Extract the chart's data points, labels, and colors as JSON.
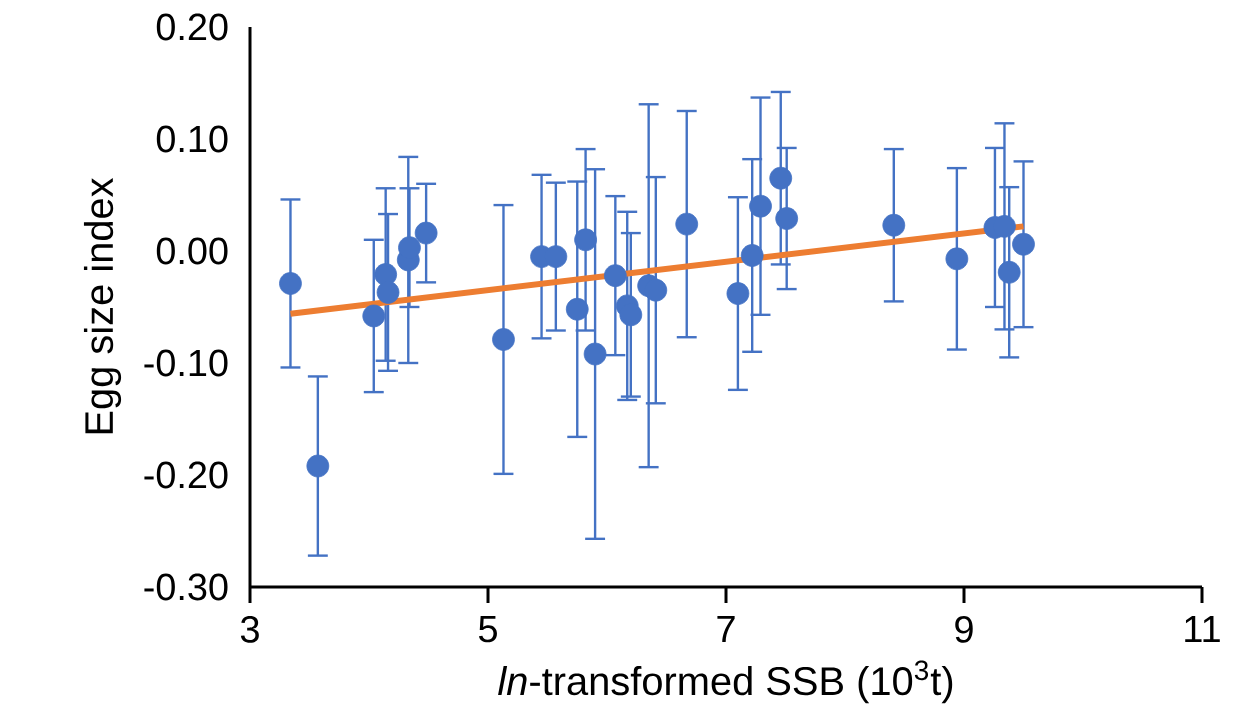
{
  "chart_data": {
    "type": "scatter",
    "xlabel": "*ln*-transformed SSB (10$^{3}$t)",
    "ylabel": "Egg size index",
    "xlim": [
      3,
      11
    ],
    "ylim": [
      -0.3,
      0.2
    ],
    "xticks": [
      3,
      5,
      7,
      9,
      11
    ],
    "yticks": [
      {
        "value": -0.3,
        "label": "-0.30"
      },
      {
        "value": -0.2,
        "label": "-0.20"
      },
      {
        "value": -0.1,
        "label": "-0.10"
      },
      {
        "value": 0,
        "label": "0.00"
      },
      {
        "value": 0.1,
        "label": "0.10"
      },
      {
        "value": 0.2,
        "label": "0.20"
      }
    ],
    "grid": false,
    "series": [
      {
        "color": "#4472c4",
        "marker": "circle",
        "x": [
          3.34,
          3.57,
          4.04,
          4.14,
          4.16,
          4.33,
          4.34,
          4.48,
          5.13,
          5.45,
          5.57,
          5.75,
          5.82,
          5.9,
          6.07,
          6.17,
          6.2,
          6.35,
          6.41,
          6.67,
          7.1,
          7.22,
          7.29,
          7.46,
          7.51,
          8.41,
          8.94,
          9.26,
          9.34,
          9.38,
          9.5
        ],
        "values": [
          -0.029,
          -0.192,
          -0.058,
          -0.021,
          -0.037,
          -0.008,
          0.003,
          0.016,
          -0.079,
          -0.005,
          -0.005,
          -0.052,
          0.01,
          -0.092,
          -0.022,
          -0.049,
          -0.057,
          -0.031,
          -0.035,
          0.024,
          -0.038,
          -0.004,
          0.04,
          0.065,
          0.029,
          0.023,
          -0.007,
          0.021,
          0.022,
          -0.019,
          0.006
        ],
        "errors": [
          0.075,
          0.08,
          0.068,
          0.077,
          0.07,
          0.092,
          0.053,
          0.044,
          0.12,
          0.073,
          0.066,
          0.114,
          0.081,
          0.165,
          0.071,
          0.084,
          0.073,
          0.162,
          0.101,
          0.101,
          0.086,
          0.086,
          0.097,
          0.077,
          0.063,
          0.068,
          0.081,
          0.071,
          0.092,
          0.076,
          0.074
        ]
      },
      {
        "type": "line",
        "color": "#ed7d31",
        "marker": "none",
        "x": [
          3.34,
          9.5
        ],
        "values": [
          -0.056,
          0.022
        ]
      }
    ]
  }
}
